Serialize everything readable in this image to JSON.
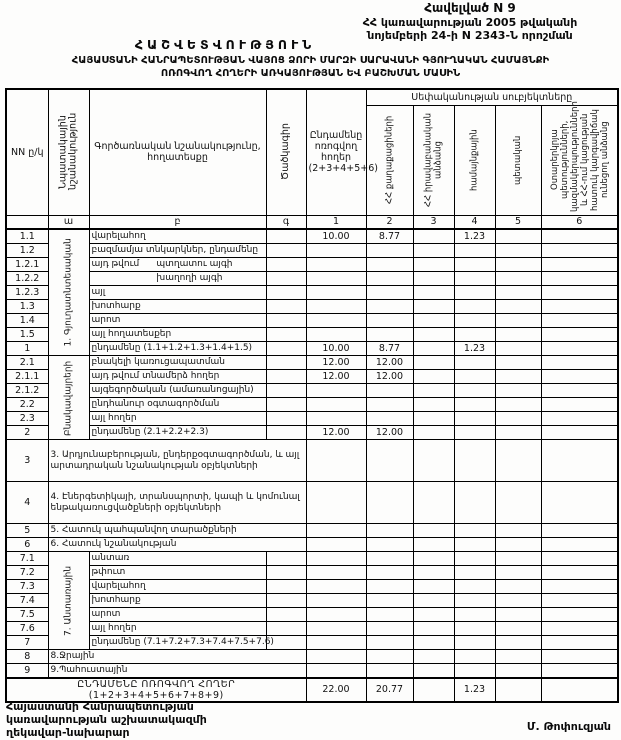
{
  "doc": {
    "appendix": "Հավելված N 9",
    "decree_line1": "ՀՀ կառավարության 2005 թվականի",
    "decree_line2": "նոյեմբերի 24-ի N 2343-Ն որոշման",
    "title": "ՀԱՇՎԵՏՎՈՒԹՅՈՒՆ",
    "subtitle_line1": "ՀԱՅԱՍՏԱՆԻ ՀԱՆՐԱՊԵՏՈՒԹՅԱՆ ՎԱՅՈՑ ՁՈՐԻ ՄԱՐԶԻ ՍԱՐԱՎԱՆԻ ԳՅՈՒՂԱԿԱՆ ՀԱՄԱՅՆՔԻ",
    "subtitle_line2": "ՈՌՈԳՎՈՂ ՀՈՂԵՐԻ ԱՌԿԱՅՈՒԹՅԱՆ ԵՎ ԲԱՇԽՄԱՆ ՄԱՍԻՆ"
  },
  "table": {
    "headers": {
      "nn": "NN ը/կ",
      "purpose": "Նպատակային նշանակություն",
      "functional": "Գործառնական նշանակությունը, հողատեսքը",
      "code": "Ծածկագիր",
      "total": "Ընդամենը ոռոգվող հողեր (2+3+4+5+6)",
      "ownership_group": "Սեփականության սուբյեկտները",
      "owners": [
        "ՀՀ քաղաքացիների",
        "ՀՀ իրավաբանական անձանց",
        "համայնքային",
        "պետական",
        "Օտարերկրյա պետությունների, կազմակերպությունների և ՀՀ-ում կացության հատուկ կարգավիճակ ունեցող անձանց"
      ],
      "letters": [
        "",
        "ա",
        "բ",
        "գ",
        "1",
        "2",
        "3",
        "4",
        "5",
        "6"
      ]
    },
    "groups": {
      "g1": {
        "label": "1. Գյուղատնտեսական",
        "rows": 9
      },
      "g2": {
        "label": "Բնակավայրերի",
        "rows": 6
      },
      "g7": {
        "label": "7. Անտառային",
        "rows": 7
      }
    },
    "rows": [
      {
        "nn": "1.1",
        "label": "վարելահող",
        "group": "g1",
        "values": [
          "10.00",
          "8.77",
          "",
          "1.23",
          "",
          ""
        ]
      },
      {
        "nn": "1.2",
        "label": "բազմամյա տնկարկներ, ընդամենը"
      },
      {
        "nn": "1.2.1",
        "label": "այդ թվում",
        "label2": "պտղատու այգի"
      },
      {
        "nn": "1.2.2",
        "label2": "խաղողի այգի"
      },
      {
        "nn": "1.2.3",
        "label": "այլ"
      },
      {
        "nn": "1.3",
        "label": "խոտհարք"
      },
      {
        "nn": "1.4",
        "label": "արոտ"
      },
      {
        "nn": "1.5",
        "label": "այլ հողատեսքեր"
      },
      {
        "nn": "1",
        "label": "ընդամենը (1.1+1.2+1.3+1.4+1.5)",
        "values": [
          "10.00",
          "8.77",
          "",
          "1.23",
          "",
          ""
        ]
      },
      {
        "nn": "2.1",
        "label": "բնակելի կառուցապատման",
        "group": "g2",
        "values": [
          "12.00",
          "12.00",
          "",
          "",
          "",
          ""
        ]
      },
      {
        "nn": "2.1.1",
        "label": "այդ թվում տնամերձ հողեր",
        "values": [
          "12.00",
          "12.00",
          "",
          "",
          "",
          ""
        ]
      },
      {
        "nn": "2.1.2",
        "label": "այգեգործական (ամառանոցային)"
      },
      {
        "nn": "2.2",
        "label": "ընդհանուր օգտագործման"
      },
      {
        "nn": "2.3",
        "label": "այլ հողեր"
      },
      {
        "nn": "2",
        "label": "ընդամենը (2.1+2.2+2.3)",
        "values": [
          "12.00",
          "12.00",
          "",
          "",
          "",
          ""
        ]
      },
      {
        "nn": "3",
        "label": "3. Արդյունաբերության, ընդերքօգտագործման, և այլ արտադրական նշանակության օբյեկտների",
        "wide": true,
        "tall": true
      },
      {
        "nn": "4",
        "label": "4. Էներգետիկայի, տրանսպորտի, կապի և կոմունալ ենթակառուցվածքների օբյեկտների",
        "wide": true,
        "tall": true
      },
      {
        "nn": "5",
        "label": "5. Հատուկ պահպանվող տարածքների",
        "wide": true
      },
      {
        "nn": "6",
        "label": "6. Հատուկ նշանակության",
        "wide": true
      },
      {
        "nn": "7.1",
        "label": "անտառ",
        "group": "g7"
      },
      {
        "nn": "7.2",
        "label": "թփուտ"
      },
      {
        "nn": "7.3",
        "label": "վարելահող"
      },
      {
        "nn": "7.4",
        "label": "խոտհարք"
      },
      {
        "nn": "7.5",
        "label": "արոտ"
      },
      {
        "nn": "7.6",
        "label": "այլ հողեր"
      },
      {
        "nn": "7",
        "label": "ընդամենը (7.1+7.2+7.3+7.4+7.5+7.6)"
      },
      {
        "nn": "8",
        "label": "8.Ջրային",
        "wide": true
      },
      {
        "nn": "9",
        "label": "9.Պահուստային",
        "wide": true
      }
    ],
    "grand_total": {
      "label": "ԸՆԴԱՄԵՆԸ ՈՌՈԳՎՈՂ ՀՈՂԵՐ (1+2+3+4+5+6+7+8+9)",
      "values": [
        "22.00",
        "20.77",
        "",
        "1.23",
        "",
        ""
      ]
    }
  },
  "footer": {
    "org_line1": "Հայաստանի Հանրապետության",
    "org_line2": "կառավարության աշխատակազմի",
    "org_line3": "ղեկավար-նախարար",
    "signature": "Մ. Թոփուզյան"
  }
}
